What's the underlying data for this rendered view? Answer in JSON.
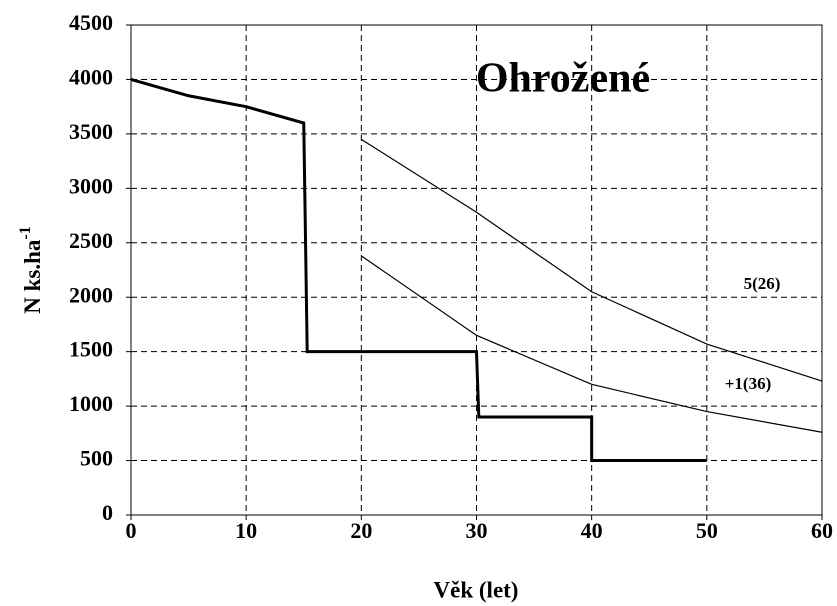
{
  "chart_data": {
    "type": "line",
    "title": "Ohrožené",
    "x_label": "Věk (let)",
    "y_label": "N ks.ha",
    "y_label_superscript": "-1",
    "xlim": [
      0,
      60
    ],
    "xticks": [
      0,
      10,
      20,
      30,
      40,
      50,
      60
    ],
    "ylim": [
      0,
      4500
    ],
    "yticks": [
      0,
      500,
      1000,
      1500,
      2000,
      2500,
      3000,
      3500,
      4000,
      4500
    ],
    "grid": true,
    "series": [
      {
        "color": "#000000",
        "width": 3,
        "x": [
          0,
          5,
          10,
          15,
          15.3,
          30,
          30.2,
          40,
          40,
          50
        ],
        "values": [
          4000,
          3850,
          3750,
          3600,
          1500,
          1500,
          900,
          900,
          500,
          500
        ]
      },
      {
        "name": "5(26)",
        "color": "#000000",
        "width": 1.2,
        "x": [
          20,
          30,
          40,
          50,
          60
        ],
        "values": [
          3450,
          2780,
          2050,
          1570,
          1230
        ]
      },
      {
        "name": "+1(36)",
        "color": "#000000",
        "width": 1.2,
        "x": [
          20,
          30,
          40,
          50,
          60
        ],
        "values": [
          2380,
          1650,
          1200,
          950,
          760
        ]
      }
    ]
  }
}
